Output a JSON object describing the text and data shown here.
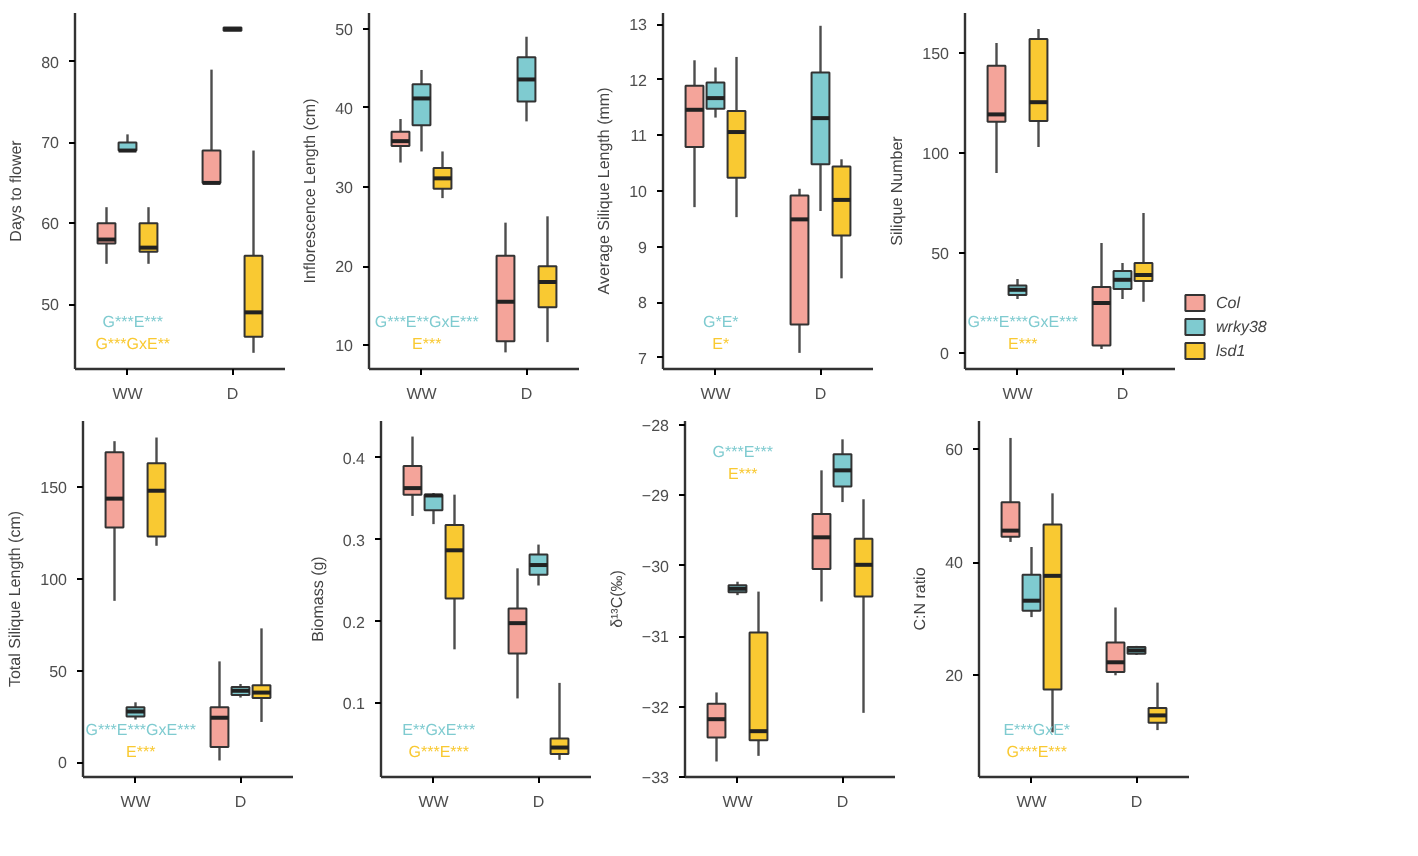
{
  "chart_data": [
    {
      "type": "box",
      "categories": [
        "WW",
        "D"
      ],
      "ylabel": "Days to flower",
      "ylim": [
        42,
        86
      ],
      "yticks": [
        50,
        60,
        70,
        80
      ],
      "annotations": [
        "G***E***",
        "G***GxE**"
      ],
      "series": [
        {
          "color": "#f4a49a",
          "boxes": [
            {
              "low": 55,
              "q1": 57.5,
              "median": 58,
              "q3": 60,
              "high": 62
            },
            {
              "low": 65,
              "q1": 65,
              "median": 65,
              "q3": 69,
              "high": 79
            }
          ]
        },
        {
          "color": "#7fcbd0",
          "boxes": [
            {
              "low": 69,
              "q1": 69,
              "median": 69,
              "q3": 70,
              "high": 71
            },
            {
              "low": 84,
              "q1": 83.8,
              "median": 84,
              "q3": 84.2,
              "high": 84
            }
          ]
        },
        {
          "color": "#f9c932",
          "boxes": [
            {
              "low": 55,
              "q1": 56.5,
              "median": 57,
              "q3": 60,
              "high": 62
            },
            {
              "low": 44,
              "q1": 46,
              "median": 49,
              "q3": 56,
              "high": 69
            }
          ]
        }
      ]
    },
    {
      "type": "box",
      "categories": [
        "WW",
        "D"
      ],
      "ylabel": "Inflorescence Length (cm)",
      "ylim": [
        7,
        52
      ],
      "yticks": [
        10,
        20,
        30,
        40,
        50
      ],
      "annotations": [
        "G***E**GxE***",
        "E***"
      ],
      "series": [
        {
          "color": "#f4a49a",
          "boxes": [
            {
              "low": 33.1,
              "q1": 35.2,
              "median": 35.8,
              "q3": 37,
              "high": 38.6
            },
            {
              "low": 9.1,
              "q1": 10.5,
              "median": 15.5,
              "q3": 21.3,
              "high": 25.5
            }
          ]
        },
        {
          "color": "#7fcbd0",
          "boxes": [
            {
              "low": 34.5,
              "q1": 37.8,
              "median": 41.2,
              "q3": 43,
              "high": 44.8
            },
            {
              "low": 38.3,
              "q1": 40.8,
              "median": 43.6,
              "q3": 46.4,
              "high": 49
            }
          ]
        },
        {
          "color": "#f9c932",
          "boxes": [
            {
              "low": 28.6,
              "q1": 29.8,
              "median": 31.1,
              "q3": 32.4,
              "high": 34.5
            },
            {
              "low": 10.4,
              "q1": 14.8,
              "median": 18,
              "q3": 20,
              "high": 26.3
            }
          ]
        }
      ]
    },
    {
      "type": "box",
      "categories": [
        "WW",
        "D"
      ],
      "ylabel": "Average Silique Length (mm)",
      "ylim": [
        6.8,
        13.2
      ],
      "yticks": [
        7,
        8,
        9,
        10,
        11,
        12,
        13
      ],
      "annotations": [
        "G*E*",
        "E*"
      ],
      "series": [
        {
          "color": "#f4a49a",
          "boxes": [
            {
              "low": 9.71,
              "q1": 10.79,
              "median": 11.46,
              "q3": 11.89,
              "high": 12.35
            },
            {
              "low": 7.09,
              "q1": 7.6,
              "median": 9.49,
              "q3": 9.92,
              "high": 10.04
            }
          ]
        },
        {
          "color": "#7fcbd0",
          "boxes": [
            {
              "low": 11.32,
              "q1": 11.48,
              "median": 11.67,
              "q3": 11.95,
              "high": 12.22
            },
            {
              "low": 9.64,
              "q1": 10.48,
              "median": 11.31,
              "q3": 12.13,
              "high": 12.97
            }
          ]
        },
        {
          "color": "#f9c932",
          "boxes": [
            {
              "low": 9.53,
              "q1": 10.24,
              "median": 11.06,
              "q3": 11.44,
              "high": 12.41
            },
            {
              "low": 8.43,
              "q1": 9.2,
              "median": 9.84,
              "q3": 10.44,
              "high": 10.57
            }
          ]
        }
      ]
    },
    {
      "type": "box",
      "categories": [
        "WW",
        "D"
      ],
      "ylabel": "Silique Number",
      "ylim": [
        -8,
        170
      ],
      "yticks": [
        0,
        50,
        100,
        150
      ],
      "annotations": [
        "G***E***GxE***",
        "E***"
      ],
      "legend": "right",
      "series": [
        {
          "name": "Col",
          "color": "#f4a49a",
          "boxes": [
            {
              "low": 90,
              "q1": 115.6,
              "median": 119.3,
              "q3": 143.6,
              "high": 155
            },
            {
              "low": 2,
              "q1": 3.7,
              "median": 25,
              "q3": 33,
              "high": 55
            }
          ]
        },
        {
          "name": "wrky38",
          "color": "#7fcbd0",
          "boxes": [
            {
              "low": 27,
              "q1": 29,
              "median": 31.6,
              "q3": 33.7,
              "high": 37
            },
            {
              "low": 27,
              "q1": 32,
              "median": 36.6,
              "q3": 41,
              "high": 45
            }
          ]
        },
        {
          "name": "lsd1",
          "color": "#f9c932",
          "boxes": [
            {
              "low": 103,
              "q1": 116,
              "median": 125.4,
              "q3": 157,
              "high": 162
            },
            {
              "low": 25.6,
              "q1": 36,
              "median": 39,
              "q3": 45,
              "high": 70
            }
          ]
        }
      ]
    },
    {
      "type": "box",
      "categories": [
        "WW",
        "D"
      ],
      "ylabel": "Total Silique Length (cm)",
      "ylim": [
        -8,
        186
      ],
      "yticks": [
        0,
        50,
        100,
        150
      ],
      "annotations": [
        "G***E***GxE***",
        "E***"
      ],
      "series": [
        {
          "color": "#f4a49a",
          "boxes": [
            {
              "low": 88,
              "q1": 128,
              "median": 143.7,
              "q3": 169,
              "high": 175
            },
            {
              "low": 1,
              "q1": 8.3,
              "median": 24.3,
              "q3": 30,
              "high": 55
            }
          ]
        },
        {
          "color": "#7fcbd0",
          "boxes": [
            {
              "low": 23.3,
              "q1": 25,
              "median": 27.7,
              "q3": 30,
              "high": 32.7
            },
            {
              "low": 35.3,
              "q1": 36.7,
              "median": 39,
              "q3": 41,
              "high": 42.7
            }
          ]
        },
        {
          "color": "#f9c932",
          "boxes": [
            {
              "low": 118,
              "q1": 123,
              "median": 148,
              "q3": 163,
              "high": 177
            },
            {
              "low": 22,
              "q1": 35,
              "median": 38,
              "q3": 42,
              "high": 73
            }
          ]
        }
      ]
    },
    {
      "type": "box",
      "categories": [
        "WW",
        "D"
      ],
      "ylabel": "Biomass (g)",
      "ylim": [
        0.01,
        0.445
      ],
      "yticks": [
        0.1,
        0.2,
        0.3,
        0.4
      ],
      "annotations": [
        "E**GxE***",
        "G***E***"
      ],
      "series": [
        {
          "color": "#f4a49a",
          "boxes": [
            {
              "low": 0.329,
              "q1": 0.355,
              "median": 0.363,
              "q3": 0.39,
              "high": 0.426
            },
            {
              "low": 0.106,
              "q1": 0.161,
              "median": 0.198,
              "q3": 0.216,
              "high": 0.265
            }
          ]
        },
        {
          "color": "#7fcbd0",
          "boxes": [
            {
              "low": 0.319,
              "q1": 0.336,
              "median": 0.354,
              "q3": 0.355,
              "high": 0.357
            },
            {
              "low": 0.244,
              "q1": 0.257,
              "median": 0.269,
              "q3": 0.282,
              "high": 0.294
            }
          ]
        },
        {
          "color": "#f9c932",
          "boxes": [
            {
              "low": 0.166,
              "q1": 0.228,
              "median": 0.287,
              "q3": 0.318,
              "high": 0.355
            },
            {
              "low": 0.031,
              "q1": 0.038,
              "median": 0.046,
              "q3": 0.057,
              "high": 0.125
            }
          ]
        }
      ]
    },
    {
      "type": "box",
      "categories": [
        "WW",
        "D"
      ],
      "ylabel": "δ¹³C(‰)",
      "ylim": [
        -33,
        -27.95
      ],
      "yticks": [
        -33,
        -32,
        -31,
        -30,
        -29,
        -28
      ],
      "annotations": [
        "G***E***",
        "E***"
      ],
      "series": [
        {
          "color": "#f4a49a",
          "boxes": [
            {
              "low": -32.78,
              "q1": -32.44,
              "median": -32.18,
              "q3": -31.96,
              "high": -31.8
            },
            {
              "low": -30.51,
              "q1": -30.05,
              "median": -29.6,
              "q3": -29.27,
              "high": -28.65
            }
          ]
        },
        {
          "color": "#7fcbd0",
          "boxes": [
            {
              "low": -30.42,
              "q1": -30.38,
              "median": -30.33,
              "q3": -30.28,
              "high": -30.23
            },
            {
              "low": -29.1,
              "q1": -28.88,
              "median": -28.65,
              "q3": -28.42,
              "high": -28.21
            }
          ]
        },
        {
          "color": "#f9c932",
          "boxes": [
            {
              "low": -32.7,
              "q1": -32.48,
              "median": -32.35,
              "q3": -30.95,
              "high": -30.37
            },
            {
              "low": -32.09,
              "q1": -30.44,
              "median": -29.99,
              "q3": -29.62,
              "high": -29.06
            }
          ]
        }
      ]
    },
    {
      "type": "box",
      "categories": [
        "WW",
        "D"
      ],
      "ylabel": "C:N ratio",
      "ylim": [
        2,
        65
      ],
      "yticks": [
        20,
        40,
        60
      ],
      "annotations": [
        "E***GxE*",
        "G***E***"
      ],
      "series": [
        {
          "color": "#f4a49a",
          "boxes": [
            {
              "low": 43.6,
              "q1": 44.5,
              "median": 45.6,
              "q3": 50.6,
              "high": 62
            },
            {
              "low": 20,
              "q1": 20.6,
              "median": 22.3,
              "q3": 25.8,
              "high": 32
            }
          ]
        },
        {
          "color": "#7fcbd0",
          "boxes": [
            {
              "low": 30.3,
              "q1": 31.4,
              "median": 33.2,
              "q3": 37.8,
              "high": 42.7
            },
            {
              "low": 23.6,
              "q1": 23.8,
              "median": 24.4,
              "q3": 25,
              "high": 25.2
            }
          ]
        },
        {
          "color": "#f9c932",
          "boxes": [
            {
              "low": 9.9,
              "q1": 17.5,
              "median": 37.6,
              "q3": 46.7,
              "high": 52.2
            },
            {
              "low": 10.3,
              "q1": 11.6,
              "median": 12.9,
              "q3": 14.2,
              "high": 18.7
            }
          ]
        }
      ]
    }
  ]
}
